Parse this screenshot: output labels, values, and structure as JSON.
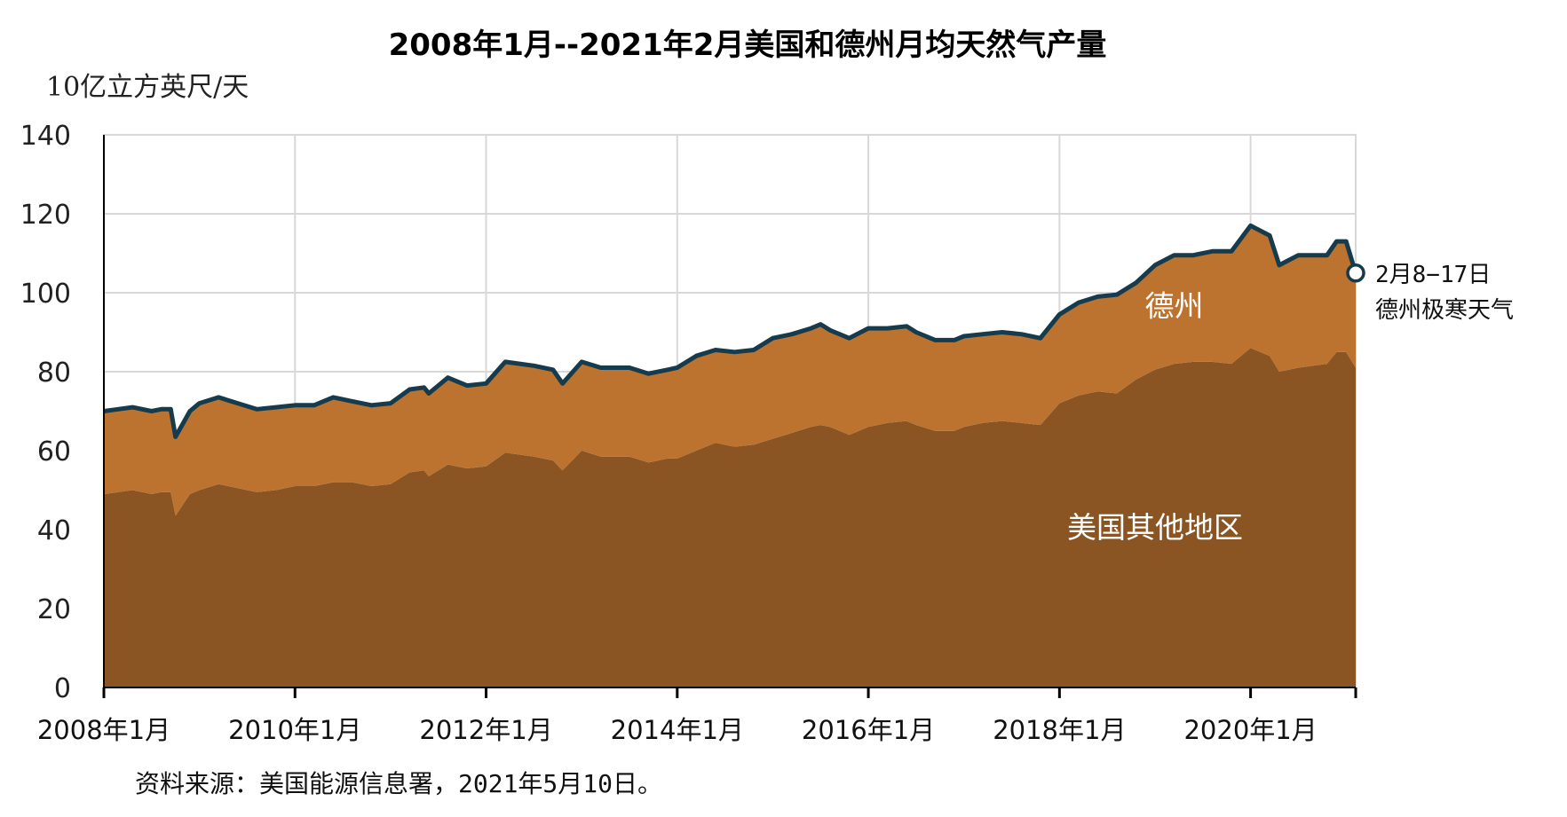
{
  "chart_data": {
    "type": "area",
    "title": "2008年1月--2021年2月美国和德州月均天然气产量",
    "ylabel": "10亿立方英尺/天",
    "ylim": [
      0,
      140
    ],
    "yticks": [
      0,
      20,
      40,
      60,
      80,
      100,
      120,
      140
    ],
    "xlim": [
      2008.0,
      2021.1
    ],
    "xticks": [
      {
        "value": 2008,
        "label": "2008年1月"
      },
      {
        "value": 2010,
        "label": "2010年1月"
      },
      {
        "value": 2012,
        "label": "2012年1月"
      },
      {
        "value": 2014,
        "label": "2014年1月"
      },
      {
        "value": 2016,
        "label": "2016年1月"
      },
      {
        "value": 2018,
        "label": "2018年1月"
      },
      {
        "value": 2020,
        "label": "2020年1月"
      }
    ],
    "grid": true,
    "colors": {
      "texas": "#bb732f",
      "rest_of_us": "#8a5522",
      "total_line": "#163b4c",
      "grid": "#d8d8d8"
    },
    "series": [
      {
        "key": "rest_of_us",
        "name": "美国其他地区",
        "points": [
          [
            2008.0,
            49
          ],
          [
            2008.3,
            50
          ],
          [
            2008.5,
            49
          ],
          [
            2008.6,
            49.5
          ],
          [
            2008.7,
            49.5
          ],
          [
            2008.75,
            43.5
          ],
          [
            2008.9,
            49
          ],
          [
            2009.0,
            50
          ],
          [
            2009.2,
            51.5
          ],
          [
            2009.4,
            50.5
          ],
          [
            2009.6,
            49.5
          ],
          [
            2009.8,
            50
          ],
          [
            2010.0,
            51
          ],
          [
            2010.2,
            51
          ],
          [
            2010.4,
            52
          ],
          [
            2010.6,
            52
          ],
          [
            2010.8,
            51
          ],
          [
            2011.0,
            51.5
          ],
          [
            2011.2,
            54.5
          ],
          [
            2011.35,
            55
          ],
          [
            2011.4,
            53.5
          ],
          [
            2011.6,
            56.5
          ],
          [
            2011.8,
            55.5
          ],
          [
            2012.0,
            56
          ],
          [
            2012.2,
            59.5
          ],
          [
            2012.5,
            58.5
          ],
          [
            2012.7,
            57.5
          ],
          [
            2012.8,
            55
          ],
          [
            2013.0,
            60
          ],
          [
            2013.2,
            58.5
          ],
          [
            2013.5,
            58.5
          ],
          [
            2013.7,
            57
          ],
          [
            2013.9,
            58
          ],
          [
            2014.0,
            58
          ],
          [
            2014.2,
            60
          ],
          [
            2014.4,
            62
          ],
          [
            2014.6,
            61
          ],
          [
            2014.8,
            61.5
          ],
          [
            2015.0,
            63
          ],
          [
            2015.2,
            64.5
          ],
          [
            2015.4,
            66
          ],
          [
            2015.5,
            66.5
          ],
          [
            2015.6,
            66
          ],
          [
            2015.8,
            64
          ],
          [
            2016.0,
            66
          ],
          [
            2016.2,
            67
          ],
          [
            2016.4,
            67.5
          ],
          [
            2016.5,
            66.5
          ],
          [
            2016.7,
            65
          ],
          [
            2016.9,
            65
          ],
          [
            2017.0,
            66
          ],
          [
            2017.2,
            67
          ],
          [
            2017.4,
            67.5
          ],
          [
            2017.6,
            67
          ],
          [
            2017.8,
            66.5
          ],
          [
            2018.0,
            72
          ],
          [
            2018.2,
            74
          ],
          [
            2018.4,
            75
          ],
          [
            2018.6,
            74.5
          ],
          [
            2018.8,
            78
          ],
          [
            2019.0,
            80.5
          ],
          [
            2019.2,
            82
          ],
          [
            2019.4,
            82.5
          ],
          [
            2019.6,
            82.5
          ],
          [
            2019.8,
            82
          ],
          [
            2020.0,
            86
          ],
          [
            2020.2,
            84
          ],
          [
            2020.3,
            80
          ],
          [
            2020.5,
            81
          ],
          [
            2020.8,
            82
          ],
          [
            2020.9,
            85
          ],
          [
            2021.0,
            85
          ],
          [
            2021.1,
            81
          ]
        ]
      },
      {
        "key": "texas",
        "name": "德州",
        "points": [
          [
            2008.0,
            21
          ],
          [
            2008.3,
            21
          ],
          [
            2008.5,
            21
          ],
          [
            2008.6,
            21
          ],
          [
            2008.7,
            21
          ],
          [
            2008.75,
            20
          ],
          [
            2008.9,
            21
          ],
          [
            2009.0,
            22
          ],
          [
            2009.2,
            22
          ],
          [
            2009.4,
            21.5
          ],
          [
            2009.6,
            21
          ],
          [
            2009.8,
            21
          ],
          [
            2010.0,
            20.5
          ],
          [
            2010.2,
            20.5
          ],
          [
            2010.4,
            21.5
          ],
          [
            2010.6,
            20.5
          ],
          [
            2010.8,
            20.5
          ],
          [
            2011.0,
            20.5
          ],
          [
            2011.2,
            21
          ],
          [
            2011.35,
            21
          ],
          [
            2011.4,
            21
          ],
          [
            2011.6,
            22
          ],
          [
            2011.8,
            21
          ],
          [
            2012.0,
            21
          ],
          [
            2012.2,
            23
          ],
          [
            2012.5,
            23
          ],
          [
            2012.7,
            23
          ],
          [
            2012.8,
            22
          ],
          [
            2013.0,
            22.5
          ],
          [
            2013.2,
            22.5
          ],
          [
            2013.5,
            22.5
          ],
          [
            2013.7,
            22.5
          ],
          [
            2013.9,
            22.5
          ],
          [
            2014.0,
            23
          ],
          [
            2014.2,
            24
          ],
          [
            2014.4,
            23.5
          ],
          [
            2014.6,
            24
          ],
          [
            2014.8,
            24
          ],
          [
            2015.0,
            25.5
          ],
          [
            2015.2,
            25
          ],
          [
            2015.4,
            25
          ],
          [
            2015.5,
            25.5
          ],
          [
            2015.6,
            24.5
          ],
          [
            2015.8,
            24.5
          ],
          [
            2016.0,
            25
          ],
          [
            2016.2,
            24
          ],
          [
            2016.4,
            24
          ],
          [
            2016.5,
            23.5
          ],
          [
            2016.7,
            23
          ],
          [
            2016.9,
            23
          ],
          [
            2017.0,
            23
          ],
          [
            2017.2,
            22.5
          ],
          [
            2017.4,
            22.5
          ],
          [
            2017.6,
            22.5
          ],
          [
            2017.8,
            22
          ],
          [
            2018.0,
            22.5
          ],
          [
            2018.2,
            23.5
          ],
          [
            2018.4,
            24
          ],
          [
            2018.6,
            25
          ],
          [
            2018.8,
            24.5
          ],
          [
            2019.0,
            26.5
          ],
          [
            2019.2,
            27.5
          ],
          [
            2019.4,
            27
          ],
          [
            2019.6,
            28
          ],
          [
            2019.8,
            28.5
          ],
          [
            2020.0,
            31
          ],
          [
            2020.2,
            30.5
          ],
          [
            2020.3,
            27
          ],
          [
            2020.5,
            28.5
          ],
          [
            2020.8,
            27.5
          ],
          [
            2020.9,
            28
          ],
          [
            2021.0,
            28
          ],
          [
            2021.1,
            24
          ]
        ]
      }
    ],
    "total": [
      [
        2008.0,
        70
      ],
      [
        2008.3,
        71
      ],
      [
        2008.5,
        70
      ],
      [
        2008.6,
        70.5
      ],
      [
        2008.7,
        70.5
      ],
      [
        2008.75,
        63.5
      ],
      [
        2008.9,
        70
      ],
      [
        2009.0,
        72
      ],
      [
        2009.2,
        73.5
      ],
      [
        2009.4,
        72
      ],
      [
        2009.6,
        70.5
      ],
      [
        2009.8,
        71
      ],
      [
        2010.0,
        71.5
      ],
      [
        2010.2,
        71.5
      ],
      [
        2010.4,
        73.5
      ],
      [
        2010.6,
        72.5
      ],
      [
        2010.8,
        71.5
      ],
      [
        2011.0,
        72
      ],
      [
        2011.2,
        75.5
      ],
      [
        2011.35,
        76
      ],
      [
        2011.4,
        74.5
      ],
      [
        2011.6,
        78.5
      ],
      [
        2011.8,
        76.5
      ],
      [
        2012.0,
        77
      ],
      [
        2012.2,
        82.5
      ],
      [
        2012.5,
        81.5
      ],
      [
        2012.7,
        80.5
      ],
      [
        2012.8,
        77
      ],
      [
        2013.0,
        82.5
      ],
      [
        2013.2,
        81
      ],
      [
        2013.5,
        81
      ],
      [
        2013.7,
        79.5
      ],
      [
        2013.9,
        80.5
      ],
      [
        2014.0,
        81
      ],
      [
        2014.2,
        84
      ],
      [
        2014.4,
        85.5
      ],
      [
        2014.6,
        85
      ],
      [
        2014.8,
        85.5
      ],
      [
        2015.0,
        88.5
      ],
      [
        2015.2,
        89.5
      ],
      [
        2015.4,
        91
      ],
      [
        2015.5,
        92
      ],
      [
        2015.6,
        90.5
      ],
      [
        2015.8,
        88.5
      ],
      [
        2016.0,
        91
      ],
      [
        2016.2,
        91
      ],
      [
        2016.4,
        91.5
      ],
      [
        2016.5,
        90
      ],
      [
        2016.7,
        88
      ],
      [
        2016.9,
        88
      ],
      [
        2017.0,
        89
      ],
      [
        2017.2,
        89.5
      ],
      [
        2017.4,
        90
      ],
      [
        2017.6,
        89.5
      ],
      [
        2017.8,
        88.5
      ],
      [
        2018.0,
        94.5
      ],
      [
        2018.2,
        97.5
      ],
      [
        2018.4,
        99
      ],
      [
        2018.6,
        99.5
      ],
      [
        2018.8,
        102.5
      ],
      [
        2019.0,
        107
      ],
      [
        2019.2,
        109.5
      ],
      [
        2019.4,
        109.5
      ],
      [
        2019.6,
        110.5
      ],
      [
        2019.8,
        110.5
      ],
      [
        2020.0,
        117
      ],
      [
        2020.2,
        114.5
      ],
      [
        2020.3,
        107
      ],
      [
        2020.5,
        109.5
      ],
      [
        2020.8,
        109.5
      ],
      [
        2020.9,
        113
      ],
      [
        2021.0,
        113
      ],
      [
        2021.1,
        105
      ]
    ],
    "area_labels": [
      {
        "text": "德州",
        "x": 2019.2,
        "y": 94
      },
      {
        "text": "美国其他地区",
        "x": 2019.0,
        "y": 38
      }
    ],
    "annotation": {
      "x": 2021.1,
      "y": 105,
      "lines": [
        "2月8−17日",
        "德州极寒天气"
      ]
    }
  },
  "source": "资料来源：美国能源信息署，2021年5月10日。"
}
